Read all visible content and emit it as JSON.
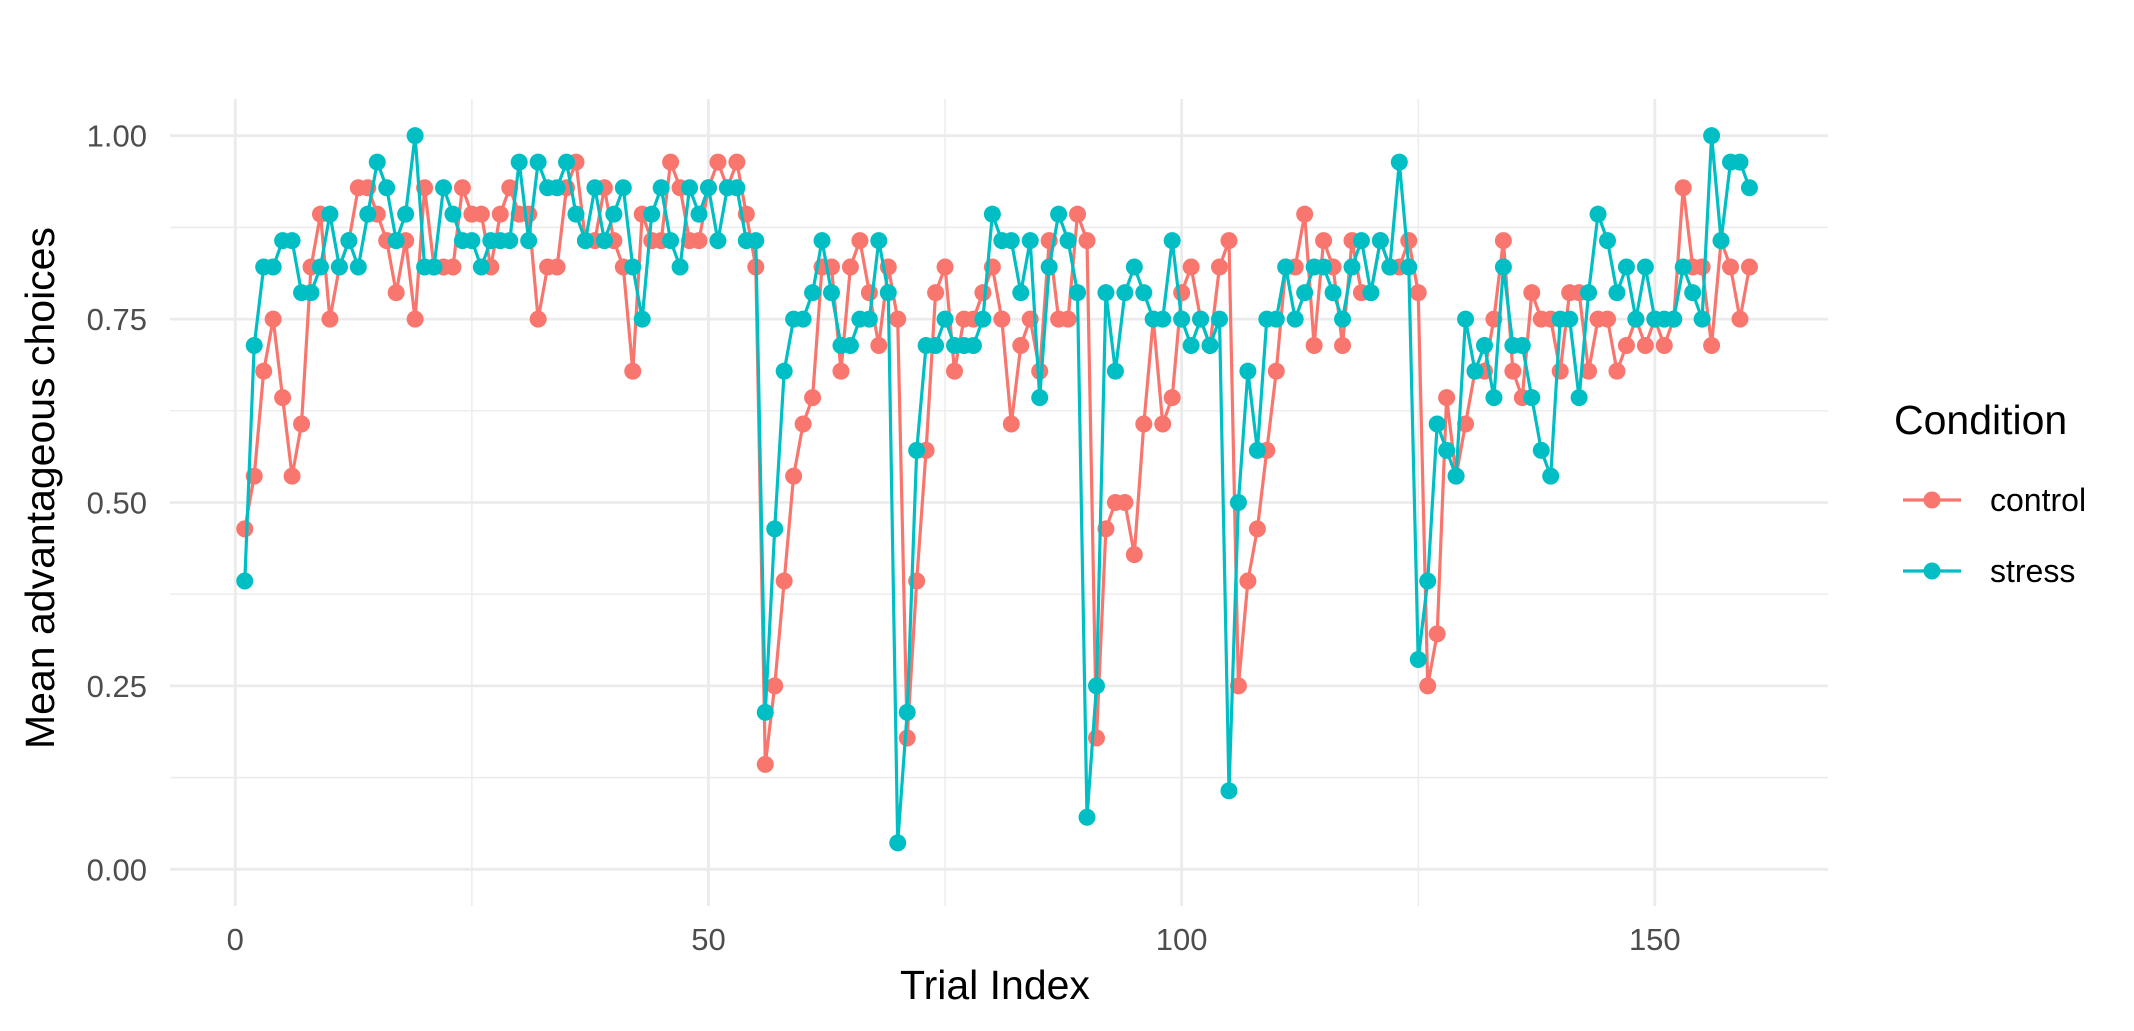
{
  "chart_data": {
    "type": "line",
    "xlabel": "Trial Index",
    "ylabel": "Mean advantageous choices",
    "xlim": [
      -6.9,
      168.3
    ],
    "ylim": [
      -0.05,
      1.05
    ],
    "x_ticks": [
      0,
      50,
      100,
      150
    ],
    "x_tick_labels": [
      "0",
      "50",
      "100",
      "150"
    ],
    "y_ticks": [
      0,
      0.25,
      0.5,
      0.75,
      1.0
    ],
    "y_tick_labels": [
      "0.00",
      "0.25",
      "0.50",
      "0.75",
      "1.00"
    ],
    "grid": true,
    "legend": {
      "title": "Condition",
      "position": "right"
    },
    "series": [
      {
        "name": "control",
        "color": "#F8766D",
        "x": [
          1,
          2,
          3,
          4,
          5,
          6,
          7,
          8,
          9,
          10,
          11,
          12,
          13,
          14,
          15,
          16,
          17,
          18,
          19,
          20,
          21,
          22,
          23,
          24,
          25,
          26,
          27,
          28,
          29,
          30,
          31,
          32,
          33,
          34,
          35,
          36,
          37,
          38,
          39,
          40,
          41,
          42,
          43,
          44,
          45,
          46,
          47,
          48,
          49,
          50,
          51,
          52,
          53,
          54,
          55,
          56,
          57,
          58,
          59,
          60,
          61,
          62,
          63,
          64,
          65,
          66,
          67,
          68,
          69,
          70,
          71,
          72,
          73,
          74,
          75,
          76,
          77,
          78,
          79,
          80,
          81,
          82,
          83,
          84,
          85,
          86,
          87,
          88,
          89,
          90,
          91,
          92,
          93,
          94,
          95,
          96,
          97,
          98,
          99,
          100,
          101,
          102,
          103,
          104,
          105,
          106,
          107,
          108,
          109,
          110,
          111,
          112,
          113,
          114,
          115,
          116,
          117,
          118,
          119,
          120,
          121,
          122,
          123,
          124,
          125,
          126,
          127,
          128,
          129,
          130,
          131,
          132,
          133,
          134,
          135,
          136,
          137,
          138,
          139,
          140,
          141,
          142,
          143,
          144,
          145,
          146,
          147,
          148,
          149,
          150,
          151,
          152,
          153,
          154,
          155,
          156,
          157,
          158,
          159,
          160
        ],
        "values": [
          0.464,
          0.536,
          0.679,
          0.75,
          0.643,
          0.536,
          0.607,
          0.821,
          0.893,
          0.75,
          0.821,
          0.857,
          0.929,
          0.929,
          0.893,
          0.857,
          0.786,
          0.857,
          0.75,
          0.929,
          0.821,
          0.821,
          0.821,
          0.929,
          0.893,
          0.893,
          0.821,
          0.893,
          0.929,
          0.893,
          0.893,
          0.75,
          0.821,
          0.821,
          0.929,
          0.964,
          0.857,
          0.857,
          0.929,
          0.857,
          0.821,
          0.679,
          0.893,
          0.857,
          0.857,
          0.964,
          0.929,
          0.857,
          0.857,
          0.929,
          0.964,
          0.929,
          0.964,
          0.893,
          0.821,
          0.143,
          0.25,
          0.393,
          0.536,
          0.607,
          0.643,
          0.821,
          0.821,
          0.679,
          0.821,
          0.857,
          0.786,
          0.714,
          0.821,
          0.75,
          0.179,
          0.393,
          0.571,
          0.786,
          0.821,
          0.679,
          0.75,
          0.75,
          0.786,
          0.821,
          0.75,
          0.607,
          0.714,
          0.75,
          0.679,
          0.857,
          0.75,
          0.75,
          0.893,
          0.857,
          0.179,
          0.464,
          0.5,
          0.5,
          0.429,
          0.607,
          0.75,
          0.607,
          0.643,
          0.786,
          0.821,
          0.75,
          0.714,
          0.821,
          0.857,
          0.25,
          0.393,
          0.464,
          0.571,
          0.679,
          0.821,
          0.821,
          0.893,
          0.714,
          0.857,
          0.821,
          0.714,
          0.857,
          0.786,
          0.786,
          0.857,
          0.821,
          0.821,
          0.857,
          0.786,
          0.25,
          0.321,
          0.643,
          0.536,
          0.607,
          0.679,
          0.679,
          0.75,
          0.857,
          0.679,
          0.643,
          0.786,
          0.75,
          0.75,
          0.679,
          0.786,
          0.786,
          0.679,
          0.75,
          0.75,
          0.679,
          0.714,
          0.75,
          0.714,
          0.75,
          0.714,
          0.75,
          0.929,
          0.821,
          0.821,
          0.714,
          0.857,
          0.821,
          0.75,
          0.821
        ]
      },
      {
        "name": "stress",
        "color": "#00BFC4",
        "x": [
          1,
          2,
          3,
          4,
          5,
          6,
          7,
          8,
          9,
          10,
          11,
          12,
          13,
          14,
          15,
          16,
          17,
          18,
          19,
          20,
          21,
          22,
          23,
          24,
          25,
          26,
          27,
          28,
          29,
          30,
          31,
          32,
          33,
          34,
          35,
          36,
          37,
          38,
          39,
          40,
          41,
          42,
          43,
          44,
          45,
          46,
          47,
          48,
          49,
          50,
          51,
          52,
          53,
          54,
          55,
          56,
          57,
          58,
          59,
          60,
          61,
          62,
          63,
          64,
          65,
          66,
          67,
          68,
          69,
          70,
          71,
          72,
          73,
          74,
          75,
          76,
          77,
          78,
          79,
          80,
          81,
          82,
          83,
          84,
          85,
          86,
          87,
          88,
          89,
          90,
          91,
          92,
          93,
          94,
          95,
          96,
          97,
          98,
          99,
          100,
          101,
          102,
          103,
          104,
          105,
          106,
          107,
          108,
          109,
          110,
          111,
          112,
          113,
          114,
          115,
          116,
          117,
          118,
          119,
          120,
          121,
          122,
          123,
          124,
          125,
          126,
          127,
          128,
          129,
          130,
          131,
          132,
          133,
          134,
          135,
          136,
          137,
          138,
          139,
          140,
          141,
          142,
          143,
          144,
          145,
          146,
          147,
          148,
          149,
          150,
          151,
          152,
          153,
          154,
          155,
          156,
          157,
          158,
          159,
          160
        ],
        "values": [
          0.393,
          0.714,
          0.821,
          0.821,
          0.857,
          0.857,
          0.786,
          0.786,
          0.821,
          0.893,
          0.821,
          0.857,
          0.821,
          0.893,
          0.964,
          0.929,
          0.857,
          0.893,
          1.0,
          0.821,
          0.821,
          0.929,
          0.893,
          0.857,
          0.857,
          0.821,
          0.857,
          0.857,
          0.857,
          0.964,
          0.857,
          0.964,
          0.929,
          0.929,
          0.964,
          0.893,
          0.857,
          0.929,
          0.857,
          0.893,
          0.929,
          0.821,
          0.75,
          0.893,
          0.929,
          0.857,
          0.821,
          0.929,
          0.893,
          0.929,
          0.857,
          0.929,
          0.929,
          0.857,
          0.857,
          0.214,
          0.464,
          0.679,
          0.75,
          0.75,
          0.786,
          0.857,
          0.786,
          0.714,
          0.714,
          0.75,
          0.75,
          0.857,
          0.786,
          0.036,
          0.214,
          0.571,
          0.714,
          0.714,
          0.75,
          0.714,
          0.714,
          0.714,
          0.75,
          0.893,
          0.857,
          0.857,
          0.786,
          0.857,
          0.643,
          0.821,
          0.893,
          0.857,
          0.786,
          0.071,
          0.25,
          0.786,
          0.679,
          0.786,
          0.821,
          0.786,
          0.75,
          0.75,
          0.857,
          0.75,
          0.714,
          0.75,
          0.714,
          0.75,
          0.107,
          0.5,
          0.679,
          0.571,
          0.75,
          0.75,
          0.821,
          0.75,
          0.786,
          0.821,
          0.821,
          0.786,
          0.75,
          0.821,
          0.857,
          0.786,
          0.857,
          0.821,
          0.964,
          0.821,
          0.286,
          0.393,
          0.607,
          0.571,
          0.536,
          0.75,
          0.679,
          0.714,
          0.643,
          0.821,
          0.714,
          0.714,
          0.643,
          0.571,
          0.536,
          0.75,
          0.75,
          0.643,
          0.786,
          0.893,
          0.857,
          0.786,
          0.821,
          0.75,
          0.821,
          0.75,
          0.75,
          0.75,
          0.821,
          0.786,
          0.75,
          1.0,
          0.857,
          0.964,
          0.964,
          0.929
        ]
      }
    ]
  }
}
